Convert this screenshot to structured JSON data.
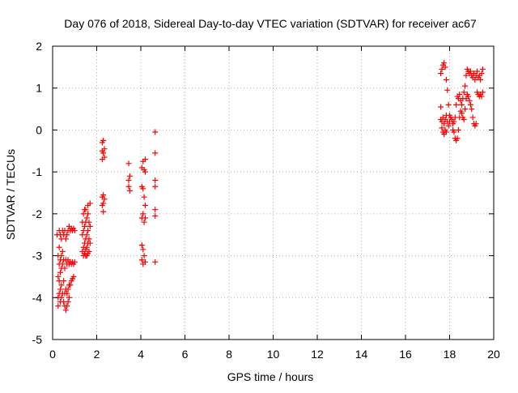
{
  "chart_data": {
    "type": "scatter",
    "title": "Day 076 of 2018, Sidereal Day-to-day VTEC variation (SDTVAR) for receiver ac67",
    "xlabel": "GPS time / hours",
    "ylabel": "SDTVAR / TECUs",
    "xlim": [
      0,
      20
    ],
    "ylim": [
      -5,
      2
    ],
    "xticks": [
      0,
      2,
      4,
      6,
      8,
      10,
      12,
      14,
      16,
      18,
      20
    ],
    "yticks": [
      -5,
      -4,
      -3,
      -2,
      -1,
      0,
      1,
      2
    ],
    "grid": true,
    "marker": "+",
    "color": "#ff0000",
    "series": [
      {
        "name": "SDTVAR",
        "points": [
          [
            0.2,
            -2.5
          ],
          [
            0.25,
            -3.0
          ],
          [
            0.25,
            -3.5
          ],
          [
            0.25,
            -4.0
          ],
          [
            0.25,
            -4.2
          ],
          [
            0.3,
            -2.4
          ],
          [
            0.3,
            -2.8
          ],
          [
            0.3,
            -3.2
          ],
          [
            0.3,
            -3.6
          ],
          [
            0.3,
            -3.9
          ],
          [
            0.35,
            -2.5
          ],
          [
            0.35,
            -3.1
          ],
          [
            0.35,
            -3.4
          ],
          [
            0.35,
            -3.8
          ],
          [
            0.35,
            -4.1
          ],
          [
            0.4,
            -2.6
          ],
          [
            0.4,
            -3.0
          ],
          [
            0.4,
            -3.3
          ],
          [
            0.4,
            -3.7
          ],
          [
            0.4,
            -4.0
          ],
          [
            0.45,
            -2.4
          ],
          [
            0.45,
            -2.9
          ],
          [
            0.45,
            -3.2
          ],
          [
            0.45,
            -3.9
          ],
          [
            0.5,
            -2.5
          ],
          [
            0.5,
            -3.1
          ],
          [
            0.5,
            -3.6
          ],
          [
            0.5,
            -4.1
          ],
          [
            0.55,
            -2.4
          ],
          [
            0.55,
            -3.3
          ],
          [
            0.55,
            -3.9
          ],
          [
            0.55,
            -4.2
          ],
          [
            0.6,
            -2.6
          ],
          [
            0.6,
            -3.1
          ],
          [
            0.6,
            -3.8
          ],
          [
            0.6,
            -4.3
          ],
          [
            0.65,
            -2.5
          ],
          [
            0.65,
            -3.2
          ],
          [
            0.65,
            -3.9
          ],
          [
            0.65,
            -4.2
          ],
          [
            0.7,
            -2.4
          ],
          [
            0.7,
            -3.1
          ],
          [
            0.7,
            -3.8
          ],
          [
            0.7,
            -4.1
          ],
          [
            0.75,
            -2.3
          ],
          [
            0.75,
            -3.2
          ],
          [
            0.75,
            -3.7
          ],
          [
            0.75,
            -4.0
          ],
          [
            0.8,
            -2.4
          ],
          [
            0.8,
            -3.15
          ],
          [
            0.8,
            -3.7
          ],
          [
            0.85,
            -2.35
          ],
          [
            0.85,
            -3.2
          ],
          [
            0.85,
            -3.6
          ],
          [
            0.9,
            -2.4
          ],
          [
            0.9,
            -3.15
          ],
          [
            0.9,
            -3.55
          ],
          [
            0.95,
            -2.35
          ],
          [
            0.95,
            -3.2
          ],
          [
            0.95,
            -3.5
          ],
          [
            1.0,
            -2.4
          ],
          [
            1.0,
            -3.15
          ],
          [
            1.35,
            -2.5
          ],
          [
            1.35,
            -2.9
          ],
          [
            1.35,
            -2.2
          ],
          [
            1.4,
            -2.4
          ],
          [
            1.4,
            -2.8
          ],
          [
            1.4,
            -2.0
          ],
          [
            1.4,
            -3.0
          ],
          [
            1.45,
            -2.3
          ],
          [
            1.45,
            -2.7
          ],
          [
            1.45,
            -1.9
          ],
          [
            1.45,
            -2.95
          ],
          [
            1.5,
            -2.2
          ],
          [
            1.5,
            -2.6
          ],
          [
            1.5,
            -1.9
          ],
          [
            1.5,
            -3.0
          ],
          [
            1.5,
            -2.85
          ],
          [
            1.55,
            -2.1
          ],
          [
            1.55,
            -2.5
          ],
          [
            1.55,
            -2.8
          ],
          [
            1.55,
            -3.0
          ],
          [
            1.6,
            -2.0
          ],
          [
            1.6,
            -2.4
          ],
          [
            1.6,
            -2.7
          ],
          [
            1.6,
            -2.95
          ],
          [
            1.6,
            -1.8
          ],
          [
            1.65,
            -2.2
          ],
          [
            1.65,
            -2.6
          ],
          [
            1.65,
            -2.9
          ],
          [
            1.7,
            -1.75
          ],
          [
            1.7,
            -2.3
          ],
          [
            1.7,
            -2.7
          ],
          [
            2.25,
            -0.3
          ],
          [
            2.25,
            -0.5
          ],
          [
            2.25,
            -0.7
          ],
          [
            2.25,
            -1.6
          ],
          [
            2.25,
            -1.8
          ],
          [
            2.3,
            -0.25
          ],
          [
            2.3,
            -0.55
          ],
          [
            2.3,
            -1.55
          ],
          [
            2.3,
            -1.75
          ],
          [
            2.3,
            -1.95
          ],
          [
            2.35,
            -0.45
          ],
          [
            2.35,
            -0.65
          ],
          [
            2.35,
            -1.65
          ],
          [
            3.45,
            -0.8
          ],
          [
            3.45,
            -1.2
          ],
          [
            3.45,
            -1.35
          ],
          [
            3.5,
            -1.1
          ],
          [
            3.5,
            -1.45
          ],
          [
            4.05,
            -0.9
          ],
          [
            4.05,
            -1.35
          ],
          [
            4.05,
            -2.1
          ],
          [
            4.05,
            -2.75
          ],
          [
            4.05,
            -3.1
          ],
          [
            4.1,
            -0.75
          ],
          [
            4.1,
            -1.4
          ],
          [
            4.1,
            -2.0
          ],
          [
            4.1,
            -2.85
          ],
          [
            4.1,
            -3.2
          ],
          [
            4.15,
            -0.95
          ],
          [
            4.15,
            -1.6
          ],
          [
            4.15,
            -2.2
          ],
          [
            4.15,
            -3.0
          ],
          [
            4.2,
            -0.7
          ],
          [
            4.2,
            -1.0
          ],
          [
            4.2,
            -1.8
          ],
          [
            4.2,
            -2.1
          ],
          [
            4.2,
            -3.15
          ],
          [
            4.65,
            -0.05
          ],
          [
            4.65,
            -0.55
          ],
          [
            4.65,
            -1.2
          ],
          [
            4.65,
            -1.35
          ],
          [
            4.65,
            -1.9
          ],
          [
            4.65,
            -2.05
          ],
          [
            4.65,
            -3.15
          ],
          [
            17.6,
            0.55
          ],
          [
            17.6,
            1.35
          ],
          [
            17.6,
            0.25
          ],
          [
            17.65,
            1.45
          ],
          [
            17.65,
            0.2
          ],
          [
            17.65,
            0.05
          ],
          [
            17.7,
            1.55
          ],
          [
            17.7,
            0.3
          ],
          [
            17.7,
            -0.05
          ],
          [
            17.75,
            1.6
          ],
          [
            17.75,
            0.15
          ],
          [
            17.75,
            -0.1
          ],
          [
            17.8,
            1.5
          ],
          [
            17.8,
            0.25
          ],
          [
            17.8,
            0.0
          ],
          [
            17.85,
            1.2
          ],
          [
            17.85,
            0.35
          ],
          [
            17.85,
            -0.05
          ],
          [
            17.9,
            0.95
          ],
          [
            17.9,
            0.2
          ],
          [
            17.95,
            0.6
          ],
          [
            17.95,
            0.1
          ],
          [
            18.0,
            0.35
          ],
          [
            18.0,
            0.2
          ],
          [
            18.05,
            0.3
          ],
          [
            18.1,
            0.25
          ],
          [
            18.15,
            0.15
          ],
          [
            18.15,
            0.0
          ],
          [
            18.2,
            -0.05
          ],
          [
            18.2,
            0.2
          ],
          [
            18.25,
            -0.2
          ],
          [
            18.25,
            0.3
          ],
          [
            18.3,
            -0.25
          ],
          [
            18.3,
            0.6
          ],
          [
            18.35,
            -0.2
          ],
          [
            18.35,
            0.8
          ],
          [
            18.4,
            0.0
          ],
          [
            18.4,
            0.75
          ],
          [
            18.45,
            0.3
          ],
          [
            18.45,
            0.85
          ],
          [
            18.5,
            0.45
          ],
          [
            18.5,
            0.7
          ],
          [
            18.55,
            0.6
          ],
          [
            18.55,
            0.4
          ],
          [
            18.6,
            0.75
          ],
          [
            18.6,
            0.3
          ],
          [
            18.65,
            0.9
          ],
          [
            18.65,
            0.25
          ],
          [
            18.7,
            1.05
          ],
          [
            18.7,
            0.5
          ],
          [
            18.75,
            1.3
          ],
          [
            18.75,
            0.75
          ],
          [
            18.8,
            1.45
          ],
          [
            18.8,
            0.85
          ],
          [
            18.85,
            1.4
          ],
          [
            18.85,
            0.8
          ],
          [
            18.9,
            1.35
          ],
          [
            18.9,
            0.7
          ],
          [
            18.95,
            1.4
          ],
          [
            18.95,
            0.6
          ],
          [
            19.0,
            1.3
          ],
          [
            19.0,
            0.5
          ],
          [
            19.05,
            1.25
          ],
          [
            19.05,
            0.3
          ],
          [
            19.1,
            1.35
          ],
          [
            19.1,
            0.15
          ],
          [
            19.15,
            1.2
          ],
          [
            19.15,
            0.1
          ],
          [
            19.2,
            1.3
          ],
          [
            19.2,
            0.15
          ],
          [
            19.25,
            1.4
          ],
          [
            19.25,
            0.9
          ],
          [
            19.3,
            1.25
          ],
          [
            19.3,
            0.85
          ],
          [
            19.35,
            1.3
          ],
          [
            19.35,
            0.8
          ],
          [
            19.4,
            1.2
          ],
          [
            19.4,
            0.85
          ],
          [
            19.45,
            1.35
          ],
          [
            19.45,
            0.8
          ],
          [
            19.5,
            1.45
          ],
          [
            19.5,
            0.9
          ]
        ]
      }
    ]
  }
}
